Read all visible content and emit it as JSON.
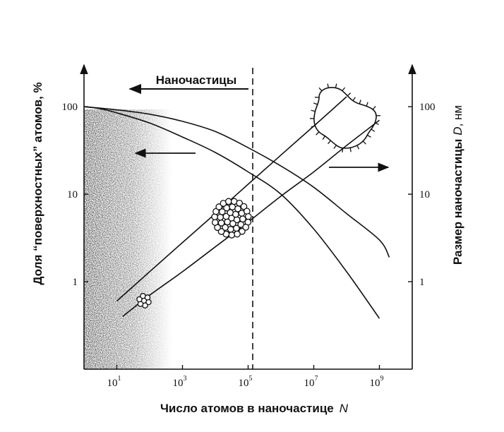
{
  "chart_data": {
    "type": "line",
    "title": "",
    "xlabel": "Число атомов в наночастице",
    "xlabel_var": "N",
    "ylabel_left": "Доля “поверхностных” атомов, %",
    "ylabel_right_prefix": "Размер наночастицы",
    "ylabel_right_var": "D",
    "ylabel_right_unit": ", нм",
    "x_scale": "log",
    "y_scale": "log",
    "xlim": [
      1,
      10000000000
    ],
    "ylim_left": [
      0.1,
      300
    ],
    "ylim_right": [
      0.1,
      300
    ],
    "x_ticks": [
      {
        "value": 10,
        "base": "10",
        "exp": "1"
      },
      {
        "value": 1000,
        "base": "10",
        "exp": "3"
      },
      {
        "value": 100000,
        "base": "10",
        "exp": "5"
      },
      {
        "value": 10000000,
        "base": "10",
        "exp": "7"
      },
      {
        "value": 1000000000,
        "base": "10",
        "exp": "9"
      }
    ],
    "y_ticks_left": [
      {
        "value": 100,
        "label": "100"
      },
      {
        "value": 10,
        "label": "10"
      },
      {
        "value": 1,
        "label": "1"
      }
    ],
    "y_ticks_right": [
      {
        "value": 100,
        "label": "100"
      },
      {
        "value": 10,
        "label": "10"
      },
      {
        "value": 1,
        "label": "1"
      }
    ],
    "annotations": {
      "nanoparticles_label": "Наночастицы",
      "boundary_x": 100000
    },
    "series": [
      {
        "axis": "left",
        "x": [
          1,
          3,
          10,
          100,
          1000,
          10000,
          100000,
          1000000,
          10000000,
          100000000,
          1000000000
        ],
        "y": [
          100,
          95,
          85,
          65,
          45,
          30,
          18,
          10,
          4,
          1.3,
          0.38
        ]
      },
      {
        "axis": "left",
        "x": [
          1,
          10,
          100,
          1000,
          10000,
          100000,
          1000000,
          10000000,
          100000000,
          1000000000,
          2000000000
        ],
        "y": [
          100,
          92,
          82,
          68,
          52,
          34,
          21,
          12,
          6,
          3,
          1.9
        ]
      },
      {
        "axis": "right",
        "x": [
          10,
          100,
          1000,
          10000,
          100000,
          1000000,
          10000000,
          100000000
        ],
        "y": [
          0.6,
          1.3,
          2.8,
          6.0,
          13,
          28,
          60,
          130
        ]
      },
      {
        "axis": "right",
        "x": [
          15,
          100,
          1000,
          10000,
          100000,
          1000000,
          10000000,
          100000000,
          1000000000
        ],
        "y": [
          0.4,
          0.7,
          1.3,
          2.5,
          4.8,
          9.5,
          18,
          36,
          70
        ]
      }
    ]
  }
}
